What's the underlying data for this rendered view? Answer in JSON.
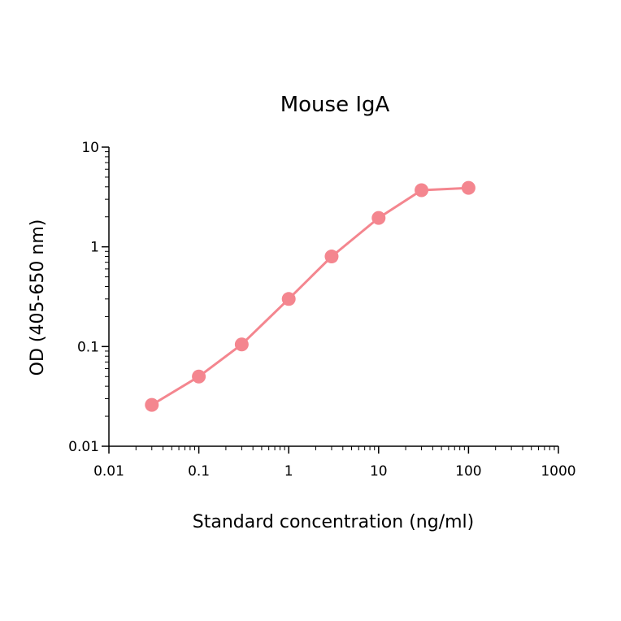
{
  "chart_data": {
    "type": "line",
    "title": "Mouse IgA",
    "xlabel": "Standard concentration (ng/ml)",
    "ylabel": "OD (405-650 nm)",
    "xscale": "log",
    "yscale": "log",
    "xlim": [
      0.01,
      1000
    ],
    "ylim": [
      0.01,
      10
    ],
    "x_tick_labels": [
      "0.01",
      "0.1",
      "1",
      "10",
      "100",
      "1000"
    ],
    "y_tick_labels": [
      "0.01",
      "0.1",
      "1",
      "10"
    ],
    "grid": false,
    "legend": "none",
    "color": "#f4868f",
    "series": [
      {
        "x": [
          0.03,
          0.1,
          0.3,
          1,
          3,
          10,
          30,
          100
        ],
        "y": [
          0.026,
          0.05,
          0.105,
          0.3,
          0.8,
          1.95,
          3.7,
          3.9
        ]
      }
    ]
  }
}
